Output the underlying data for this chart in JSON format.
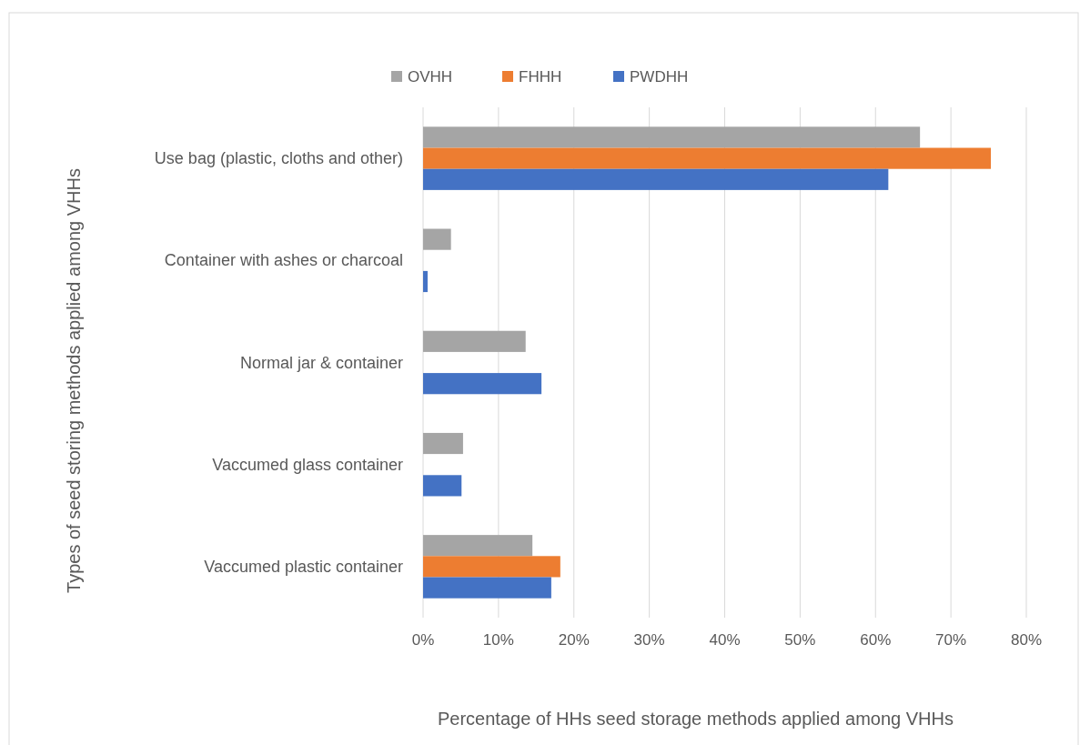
{
  "chart_data": {
    "type": "bar",
    "orientation": "horizontal",
    "xlabel": "Percentage of HHs seed storage methods applied among VHHs",
    "ylabel": "Types of seed storing methods applied among VHHs",
    "categories": [
      "Use bag (plastic, cloths and other)",
      "Container with ashes or charcoal",
      "Normal jar & container",
      "Vaccumed glass container",
      "Vaccumed plastic container"
    ],
    "series": [
      {
        "name": "OVHH",
        "color": "#a5a5a5",
        "values": [
          65.9,
          3.7,
          13.6,
          5.3,
          14.5
        ]
      },
      {
        "name": "FHHH",
        "color": "#ed7d31",
        "values": [
          75.3,
          null,
          null,
          null,
          18.2
        ]
      },
      {
        "name": "PWDHH",
        "color": "#4472c4",
        "values": [
          61.7,
          0.6,
          15.7,
          5.1,
          17.0
        ]
      }
    ],
    "xlim": [
      0,
      80
    ],
    "xticks": [
      {
        "value": 0,
        "label": "0%"
      },
      {
        "value": 10,
        "label": "10%"
      },
      {
        "value": 20,
        "label": "20%"
      },
      {
        "value": 30,
        "label": "30%"
      },
      {
        "value": 40,
        "label": "40%"
      },
      {
        "value": 50,
        "label": "50%"
      },
      {
        "value": 60,
        "label": "60%"
      },
      {
        "value": 70,
        "label": "70%"
      },
      {
        "value": 80,
        "label": "80%"
      }
    ],
    "grid": "x",
    "legend": "top"
  }
}
